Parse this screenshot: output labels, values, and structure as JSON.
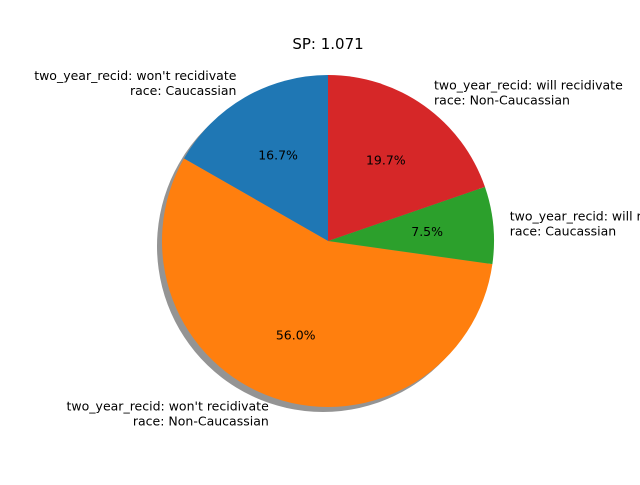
{
  "chart_data": {
    "type": "pie",
    "title": "SP: 1.071",
    "shadow": true,
    "start_angle_deg": 90,
    "direction": "counterclockwise",
    "slices": [
      {
        "label_lines": [
          "two_year_recid: won't recidivate",
          "race: Caucassian"
        ],
        "value": 16.7,
        "pct_label": "16.7%",
        "color": "#1f77b4"
      },
      {
        "label_lines": [
          "two_year_recid: won't recidivate",
          "race: Non-Caucassian"
        ],
        "value": 56.0,
        "pct_label": "56.0%",
        "color": "#ff7f0e"
      },
      {
        "label_lines": [
          "two_year_recid: will recidivate",
          "race: Caucassian"
        ],
        "value": 7.5,
        "pct_label": "7.5%",
        "color": "#2ca02c"
      },
      {
        "label_lines": [
          "two_year_recid: will recidivate",
          "race: Non-Caucassian"
        ],
        "value": 19.7,
        "pct_label": "19.7%",
        "color": "#d62728"
      }
    ]
  }
}
